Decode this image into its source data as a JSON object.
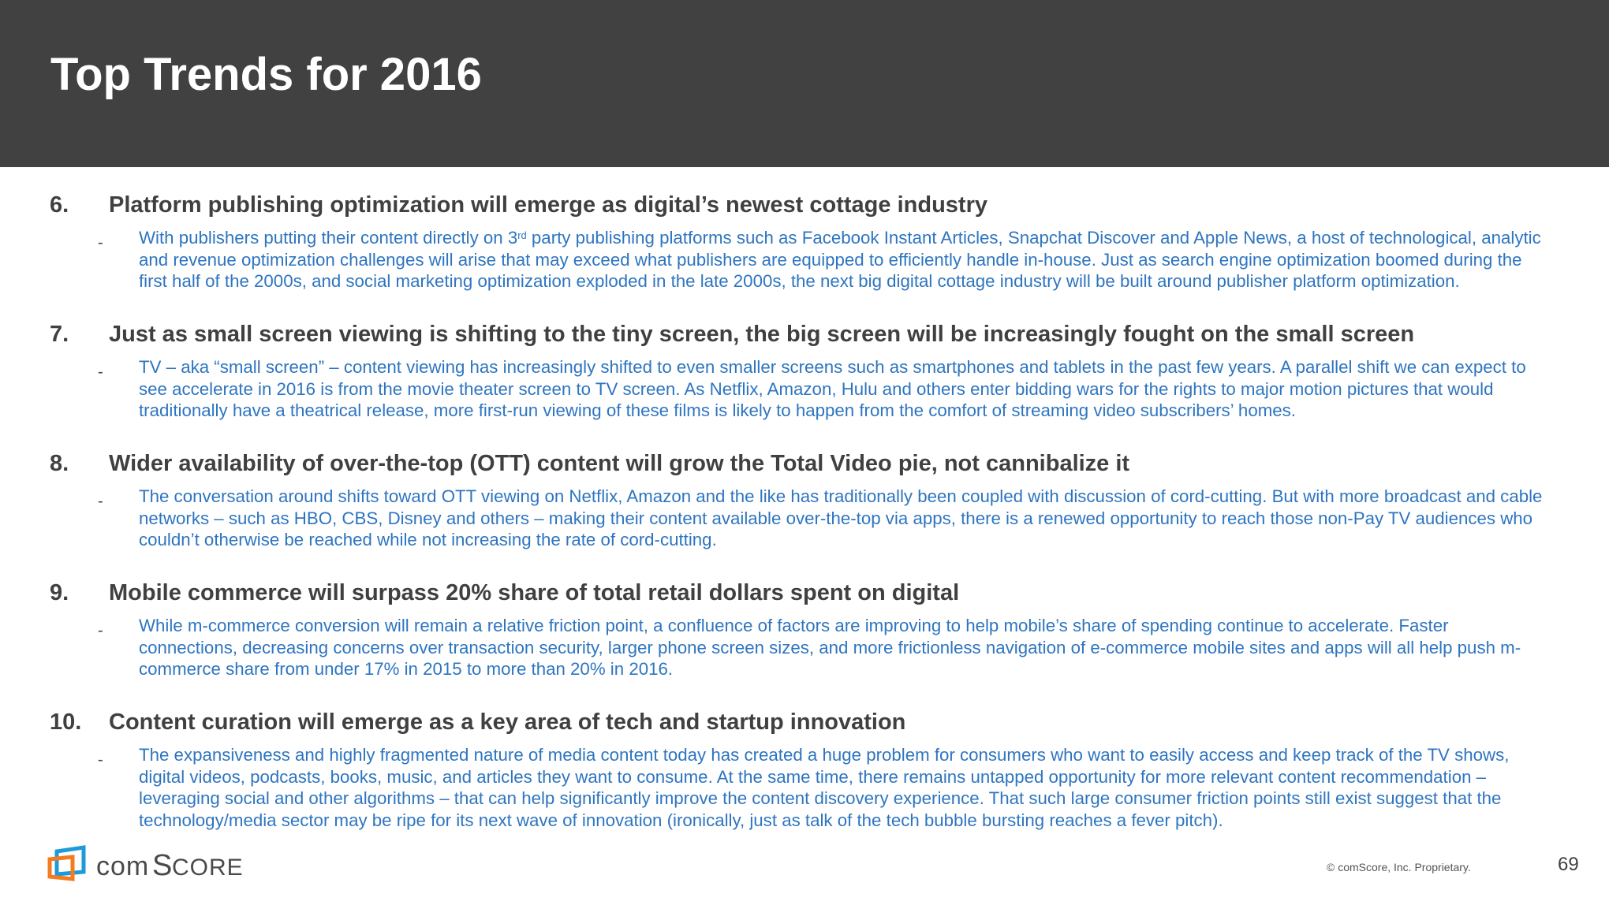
{
  "header": {
    "title": "Top Trends for 2016",
    "background": "#414141"
  },
  "colors": {
    "heading": "#404040",
    "body": "#2E75C0",
    "logo_blue": "#1E9BD7",
    "logo_orange": "#F47B20"
  },
  "items": [
    {
      "number": "6.",
      "heading": "Platform publishing optimization will emerge as digital’s newest cottage industry",
      "bullet": "-",
      "lines": [
        [
          {
            "t": "With publishers putting their content directly on 3"
          },
          {
            "t": "rd",
            "sup": true
          },
          {
            "t": " party publishing platforms such as Facebook Instant Articles, Snapchat Discover and Apple News, a host of technological, analytic"
          }
        ],
        [
          {
            "t": "and revenue optimization challenges will arise that may exceed what publishers are equipped to efficiently handle in-house. Just as search engine optimization boomed during the"
          }
        ],
        [
          {
            "t": "first half of the 2000s, and social marketing optimization exploded in the late 2000s, the next big digital cottage industry will be built around publisher platform optimization."
          }
        ]
      ]
    },
    {
      "number": "7.",
      "heading": "Just as small screen viewing is shifting to the tiny screen, the big screen will be increasingly fought on the small screen",
      "bullet": "-",
      "lines": [
        [
          {
            "t": "TV – aka “small screen” – content viewing has increasingly shifted to even smaller screens such as smartphones and tablets in the past few years. A parallel shift we can expect to"
          }
        ],
        [
          {
            "t": "see accelerate in 2016 is from the movie theater screen to TV screen. As Netflix, Amazon, Hulu and others enter bidding wars for the rights to major motion pictures that would"
          }
        ],
        [
          {
            "t": "traditionally have a theatrical release, more first-run viewing of these films is likely to happen from the comfort of streaming video subscribers’ homes."
          }
        ]
      ]
    },
    {
      "number": "8.",
      "heading": "Wider availability of over-the-top (OTT) content will grow the Total Video pie, not cannibalize it",
      "bullet": "-",
      "lines": [
        [
          {
            "t": "The conversation around shifts toward OTT viewing on Netflix, Amazon and the like has traditionally been coupled with discussion of cord-cutting. But with more broadcast and cable"
          }
        ],
        [
          {
            "t": "networks – such as HBO, CBS, Disney and others – making their content available over-the-top via apps, there is a renewed opportunity to reach those non-Pay TV audiences who"
          }
        ],
        [
          {
            "t": "couldn’t otherwise be reached while not increasing the rate of cord-cutting."
          }
        ]
      ]
    },
    {
      "number": "9.",
      "heading": "Mobile commerce will surpass 20% share of total retail dollars spent on digital",
      "bullet": "-",
      "lines": [
        [
          {
            "t": "While m-commerce conversion will remain a relative friction point, a confluence of factors are improving to help mobile’s share of spending continue to accelerate. Faster"
          }
        ],
        [
          {
            "t": "connections, decreasing concerns over transaction security, larger phone screen sizes, and more frictionless navigation of e-commerce mobile sites and apps will all help push m-"
          }
        ],
        [
          {
            "t": "commerce share from under 17% in 2015 to more than 20% in 2016."
          }
        ]
      ]
    },
    {
      "number": "10.",
      "heading": "Content curation will emerge as a key area of tech and startup innovation",
      "bullet": "-",
      "lines": [
        [
          {
            "t": "The expansiveness and highly fragmented nature of media content today has created a huge problem for consumers who want to easily access and keep track of the TV shows,"
          }
        ],
        [
          {
            "t": "digital videos, podcasts, books, music, and articles they want to consume. At the same time, there remains untapped opportunity for more relevant content recommendation –"
          }
        ],
        [
          {
            "t": "leveraging social and other algorithms – that can help significantly improve the content discovery experience. That such large consumer friction points still exist suggest that the"
          }
        ],
        [
          {
            "t": "technology/media sector may be ripe for its next wave of innovation (ironically, just as talk of the tech bubble bursting reaches a fever pitch)."
          }
        ]
      ]
    }
  ],
  "footer": {
    "logo_text": "comScore",
    "copyright": "© comScore, Inc. Proprietary.",
    "page_number": "69"
  }
}
